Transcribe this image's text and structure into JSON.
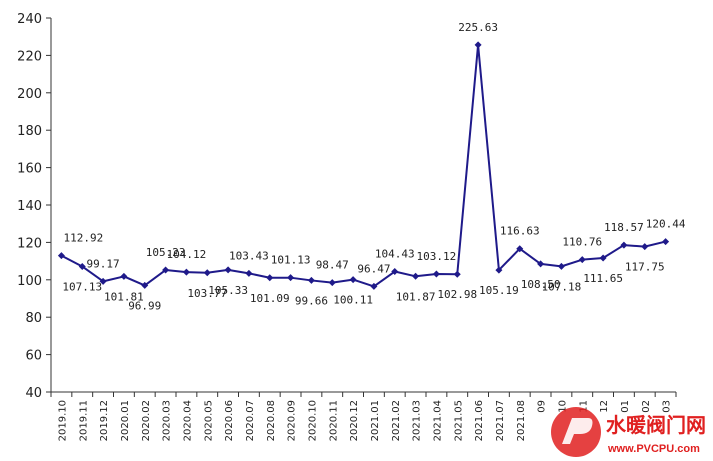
{
  "chart_data": {
    "type": "line",
    "title": "",
    "xlabel": "",
    "ylabel": "",
    "ylim": [
      40,
      240
    ],
    "yticks": [
      40,
      60,
      80,
      100,
      120,
      140,
      160,
      180,
      200,
      220,
      240
    ],
    "grid": false,
    "legend": "none",
    "x": [
      "2019.10",
      "2019.11",
      "2019.12",
      "2020.01",
      "2020.02",
      "2020.03",
      "2020.04",
      "2020.05",
      "2020.06",
      "2020.07",
      "2020.08",
      "2020.09",
      "2020.10",
      "2020.11",
      "2020.12",
      "2021.01",
      "2021.02",
      "2021.03",
      "2021.04",
      "2021.05",
      "2021.06",
      "2021.07",
      "2021.08",
      "2021.09",
      "2021.10",
      "2021.11",
      "2021.12",
      "2022.01",
      "2022.02",
      "2022.03"
    ],
    "series": [
      {
        "values": [
          112.92,
          107.13,
          99.17,
          101.81,
          96.99,
          105.23,
          104.12,
          103.77,
          105.33,
          103.43,
          101.09,
          101.13,
          99.66,
          98.47,
          100.11,
          96.47,
          104.43,
          101.87,
          103.12,
          102.98,
          225.63,
          105.19,
          116.63,
          108.5,
          107.18,
          110.76,
          111.65,
          118.57,
          117.75,
          120.44
        ],
        "labels": [
          "112.92",
          "107.13",
          "99.17",
          "101.81",
          "96.99",
          "105.23",
          "104.12",
          "103.77",
          "105.33",
          "103.43",
          "101.09",
          "101.13",
          "99.66",
          "98.47",
          "100.11",
          "96.47",
          "104.43",
          "101.87",
          "103.12",
          "102.98",
          "225.63",
          "105.19",
          "116.63",
          "108.50",
          "107.18",
          "110.76",
          "111.65",
          "118.57",
          "117.75",
          "120.44"
        ]
      }
    ],
    "x_tick_labels": [
      "2019.10",
      "2019.11",
      "2019.12",
      "2020.01",
      "2020.02",
      "2020.03",
      "2020.04",
      "2020.05",
      "2020.06",
      "2020.07",
      "2020.08",
      "2020.09",
      "2020.10",
      "2020.11",
      "2020.12",
      "2021.01",
      "2021.02",
      "2021.03",
      "2021.04",
      "2021.05",
      "2021.06",
      "2021.07",
      "2021.08",
      "09",
      "10",
      "11",
      "12",
      "01",
      "02",
      "03"
    ],
    "line_color": "#1f1a8a"
  },
  "watermark": {
    "name": "水暖阀门网",
    "url": "www.PVCPU.com",
    "color": "#e02020"
  }
}
